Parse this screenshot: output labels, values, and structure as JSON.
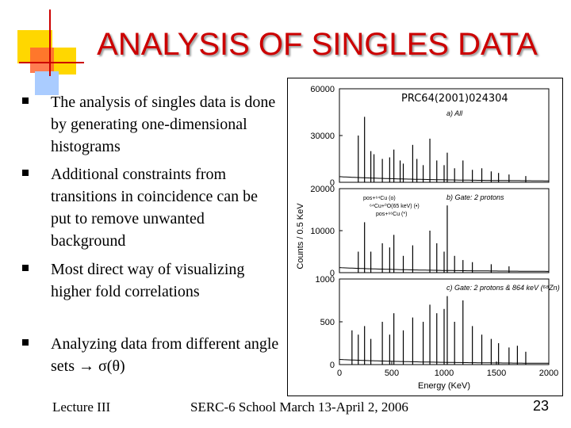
{
  "slide": {
    "title": "ANALYSIS OF SINGLES DATA",
    "bullets": [
      "The analysis of singles data is done by generating one-dimensional histograms",
      "Additional constraints from transitions in coincidence can be put to remove unwanted background",
      "Most direct way of visualizing higher fold correlations",
      "Analyzing data from different angle sets → σ(θ)"
    ],
    "footer": {
      "left": "Lecture III",
      "center": "SERC-6 School March 13-April 2, 2006",
      "page_number": "23"
    }
  },
  "chart_data": {
    "type": "bar",
    "reference": "PRC64(2001)024304",
    "xlabel": "Energy (KeV)",
    "ylabel": "Counts / 0.5 KeV",
    "x_ticks": [
      "0",
      "500",
      "1000",
      "1500",
      "2000"
    ],
    "xlim": [
      0,
      2000
    ],
    "panels": [
      {
        "label": "a) All",
        "y_ticks": [
          "0",
          "30000",
          "60000"
        ],
        "ylim": [
          0,
          60000
        ],
        "peaks": [
          [
            180,
            30000
          ],
          [
            240,
            42000
          ],
          [
            300,
            20000
          ],
          [
            330,
            18000
          ],
          [
            410,
            15000
          ],
          [
            480,
            16000
          ],
          [
            520,
            21000
          ],
          [
            580,
            14000
          ],
          [
            610,
            12000
          ],
          [
            700,
            24000
          ],
          [
            740,
            15000
          ],
          [
            800,
            11000
          ],
          [
            864,
            28000
          ],
          [
            930,
            14000
          ],
          [
            1000,
            11000
          ],
          [
            1030,
            19000
          ],
          [
            1100,
            9000
          ],
          [
            1180,
            14000
          ],
          [
            1270,
            8000
          ],
          [
            1360,
            9000
          ],
          [
            1450,
            7000
          ],
          [
            1520,
            6000
          ],
          [
            1620,
            5000
          ],
          [
            1780,
            4000
          ]
        ]
      },
      {
        "label": "b) Gate: 2 protons",
        "y_ticks": [
          "0",
          "10000",
          "20000"
        ],
        "ylim": [
          0,
          20000
        ],
        "annotations": [
          "pos+⁶⁴Cu (o)",
          "⁶⁴Cu+⁰O(65 keV) (•)",
          "pos+⁶⁶Cu (*)"
        ],
        "peaks": [
          [
            180,
            5000
          ],
          [
            240,
            12000
          ],
          [
            300,
            5000
          ],
          [
            410,
            7000
          ],
          [
            480,
            6000
          ],
          [
            520,
            9000
          ],
          [
            610,
            4000
          ],
          [
            700,
            6500
          ],
          [
            864,
            10000
          ],
          [
            930,
            7000
          ],
          [
            1000,
            5000
          ],
          [
            1030,
            16000
          ],
          [
            1100,
            4000
          ],
          [
            1180,
            3000
          ],
          [
            1270,
            2500
          ],
          [
            1450,
            2000
          ],
          [
            1620,
            1500
          ]
        ]
      },
      {
        "label": "c) Gate: 2 protons & 864 keV (⁶⁸Zn)",
        "y_ticks": [
          "0",
          "500",
          "1000"
        ],
        "ylim": [
          0,
          1000
        ],
        "peaks": [
          [
            120,
            400
          ],
          [
            180,
            350
          ],
          [
            240,
            450
          ],
          [
            300,
            300
          ],
          [
            410,
            500
          ],
          [
            480,
            350
          ],
          [
            520,
            600
          ],
          [
            610,
            400
          ],
          [
            700,
            550
          ],
          [
            800,
            500
          ],
          [
            864,
            700
          ],
          [
            930,
            600
          ],
          [
            1000,
            650
          ],
          [
            1030,
            800
          ],
          [
            1100,
            500
          ],
          [
            1180,
            750
          ],
          [
            1270,
            450
          ],
          [
            1360,
            350
          ],
          [
            1450,
            300
          ],
          [
            1520,
            250
          ],
          [
            1620,
            200
          ],
          [
            1700,
            220
          ],
          [
            1780,
            150
          ]
        ]
      }
    ]
  }
}
